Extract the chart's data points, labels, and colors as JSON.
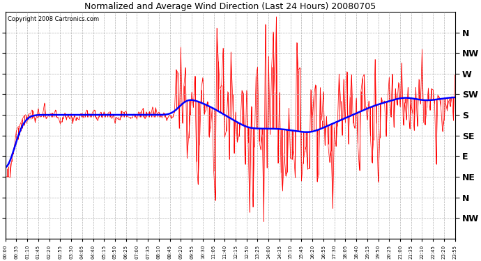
{
  "title": "Normalized and Average Wind Direction (Last 24 Hours) 20080705",
  "copyright": "Copyright 2008 Cartronics.com",
  "ytick_labels": [
    "N",
    "NW",
    "W",
    "SW",
    "S",
    "SE",
    "E",
    "NE",
    "N",
    "NW"
  ],
  "ytick_positions": [
    360,
    315,
    270,
    225,
    180,
    135,
    90,
    45,
    0,
    -45
  ],
  "ylim": [
    -90,
    405
  ],
  "bg_color": "#ffffff",
  "grid_color": "#b0b0b0",
  "red_color": "#ff0000",
  "blue_color": "#0000ff",
  "n_points": 288,
  "figsize": [
    6.9,
    3.75
  ],
  "dpi": 100
}
